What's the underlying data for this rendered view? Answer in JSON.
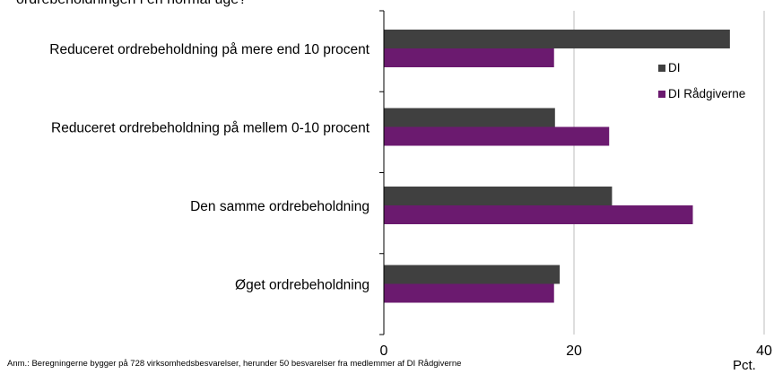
{
  "title_fragment": "ordrebeholdningen i en normal uge?",
  "note": "Anm.: Beregningerne  bygger på 728 virksomhedsbesvarelser,  herunder  50 besvarelser  fra medlemmer  af DI Rådgiverne",
  "unit_label": "Pct.",
  "colors": {
    "di": "#404040",
    "di_raadgiverne": "#6b1a6f",
    "grid": "#bdbdbd",
    "axis": "#000000"
  },
  "chart_data": {
    "type": "bar",
    "orientation": "horizontal",
    "categories": [
      "Reduceret ordrebeholdning på mere end 10 procent",
      "Reduceret ordrebeholdning på mellem 0-10 procent",
      "Den samme ordrebeholdning",
      "Øget ordrebeholdning"
    ],
    "series": [
      {
        "name": "DI",
        "color": "#404040",
        "values": [
          36.4,
          18.0,
          24.0,
          18.5
        ]
      },
      {
        "name": "DI Rådgiverne",
        "color": "#6b1a6f",
        "values": [
          17.9,
          23.7,
          32.5,
          17.9
        ]
      }
    ],
    "xlim": [
      0,
      40
    ],
    "xticks": [
      0,
      20,
      40
    ],
    "xlabel": "Pct.",
    "grid": true,
    "legend_position": "right"
  }
}
